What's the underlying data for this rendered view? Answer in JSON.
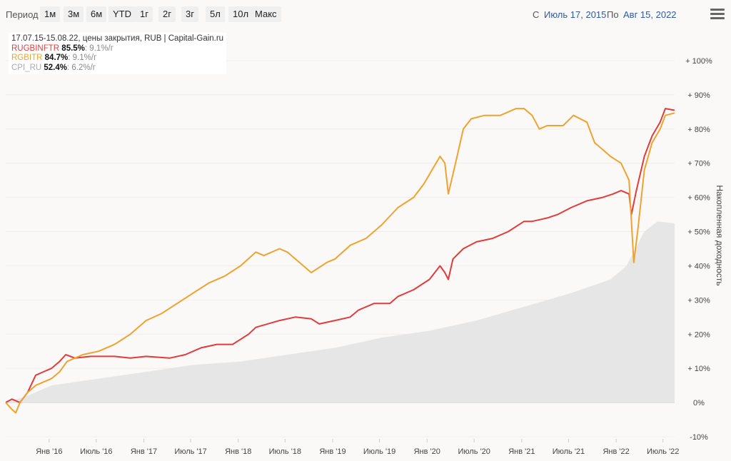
{
  "toolbar": {
    "period_label": "Период",
    "ranges": [
      "1м",
      "3м",
      "6м",
      "YTD",
      "1г",
      "2г",
      "3г",
      "5л",
      "10л",
      "Макс"
    ],
    "from_label": "С",
    "from_date": "Июль 17, 2015",
    "to_label": "По",
    "to_date": "Авг 15, 2022",
    "menu_icon": "hamburger-icon"
  },
  "legend": {
    "header": "17.07.15-15.08.22, цены закрытия, RUB | Capital-Gain.ru",
    "items": [
      {
        "name": "RUGBINFTR",
        "total": "85.5%",
        "rate": ": 9.1%/г",
        "color": "#e03c3c"
      },
      {
        "name": "RGBITR",
        "total": "84.7%",
        "rate": ": 9.1%/г",
        "color": "#f0a22e"
      },
      {
        "name": "CPI_RU",
        "total": "52.4%",
        "rate": ": 6.2%/г",
        "color": "#aaaaaa"
      }
    ]
  },
  "chart_data": {
    "type": "line",
    "title": "",
    "xlabel": "",
    "ylabel": "Накопленная доходность",
    "ylim": [
      -10,
      100
    ],
    "x_ticks": [
      "Янв '16",
      "Июль '16",
      "Янв '17",
      "Июль '17",
      "Янв '18",
      "Июль '18",
      "Янв '19",
      "Июль '19",
      "Янв '20",
      "Июль '20",
      "Янв '21",
      "Июль '21",
      "Янв '22",
      "Июль '22"
    ],
    "y_ticks": [
      "-10%",
      "0%",
      "+ 10%",
      "+ 20%",
      "+ 30%",
      "+ 40%",
      "+ 50%",
      "+ 60%",
      "+ 70%",
      "+ 80%",
      "+ 90%",
      "+ 100%"
    ],
    "series": [
      {
        "name": "RUGBINFTR",
        "color": "#e03c3c",
        "points": [
          [
            "2015-07-17",
            0
          ],
          [
            "2015-08-10",
            1
          ],
          [
            "2015-09-10",
            0
          ],
          [
            "2015-10-10",
            3
          ],
          [
            "2015-11-10",
            8
          ],
          [
            "2015-12-10",
            9
          ],
          [
            "2016-01-10",
            10
          ],
          [
            "2016-02-10",
            12
          ],
          [
            "2016-03-05",
            14
          ],
          [
            "2016-04-10",
            13
          ],
          [
            "2016-06-10",
            13.5
          ],
          [
            "2016-09-10",
            13.5
          ],
          [
            "2016-11-10",
            13
          ],
          [
            "2017-01-10",
            13.5
          ],
          [
            "2017-04-10",
            13
          ],
          [
            "2017-06-10",
            14
          ],
          [
            "2017-08-10",
            16
          ],
          [
            "2017-10-10",
            17
          ],
          [
            "2017-12-10",
            17
          ],
          [
            "2018-02-10",
            20
          ],
          [
            "2018-03-10",
            22
          ],
          [
            "2018-06-10",
            24
          ],
          [
            "2018-08-10",
            25
          ],
          [
            "2018-10-10",
            24.5
          ],
          [
            "2018-11-10",
            23
          ],
          [
            "2019-01-10",
            24
          ],
          [
            "2019-03-10",
            25
          ],
          [
            "2019-04-10",
            27
          ],
          [
            "2019-06-10",
            29
          ],
          [
            "2019-08-10",
            29
          ],
          [
            "2019-09-10",
            31
          ],
          [
            "2019-11-10",
            33
          ],
          [
            "2020-01-10",
            36
          ],
          [
            "2020-02-20",
            40
          ],
          [
            "2020-03-10",
            38
          ],
          [
            "2020-03-23",
            36
          ],
          [
            "2020-04-10",
            42
          ],
          [
            "2020-05-20",
            45
          ],
          [
            "2020-07-10",
            47
          ],
          [
            "2020-09-10",
            48
          ],
          [
            "2020-11-10",
            50
          ],
          [
            "2021-01-10",
            53
          ],
          [
            "2021-02-10",
            53
          ],
          [
            "2021-04-10",
            54
          ],
          [
            "2021-05-20",
            55
          ],
          [
            "2021-07-10",
            57
          ],
          [
            "2021-09-10",
            59
          ],
          [
            "2021-11-10",
            60
          ],
          [
            "2021-12-20",
            61
          ],
          [
            "2022-01-20",
            62
          ],
          [
            "2022-02-20",
            61
          ],
          [
            "2022-03-01",
            55
          ],
          [
            "2022-03-20",
            62
          ],
          [
            "2022-04-20",
            72
          ],
          [
            "2022-05-20",
            78
          ],
          [
            "2022-06-20",
            82
          ],
          [
            "2022-07-10",
            86
          ],
          [
            "2022-08-15",
            85.5
          ]
        ]
      },
      {
        "name": "RGBITR",
        "color": "#f0a22e",
        "points": [
          [
            "2015-07-17",
            0
          ],
          [
            "2015-08-10",
            -2
          ],
          [
            "2015-08-25",
            -3
          ],
          [
            "2015-09-10",
            0
          ],
          [
            "2015-10-10",
            3
          ],
          [
            "2015-11-10",
            5
          ],
          [
            "2015-12-10",
            6
          ],
          [
            "2016-01-10",
            7
          ],
          [
            "2016-02-10",
            9
          ],
          [
            "2016-03-10",
            12
          ],
          [
            "2016-05-10",
            14
          ],
          [
            "2016-07-10",
            15
          ],
          [
            "2016-09-10",
            17
          ],
          [
            "2016-11-10",
            20
          ],
          [
            "2017-01-10",
            24
          ],
          [
            "2017-03-10",
            26
          ],
          [
            "2017-05-10",
            29
          ],
          [
            "2017-07-10",
            32
          ],
          [
            "2017-09-10",
            35
          ],
          [
            "2017-11-10",
            37
          ],
          [
            "2018-01-10",
            40
          ],
          [
            "2018-03-10",
            44
          ],
          [
            "2018-04-10",
            43
          ],
          [
            "2018-05-10",
            44
          ],
          [
            "2018-06-10",
            45
          ],
          [
            "2018-07-10",
            44
          ],
          [
            "2018-09-10",
            40
          ],
          [
            "2018-10-10",
            38
          ],
          [
            "2018-12-10",
            41
          ],
          [
            "2019-01-10",
            42
          ],
          [
            "2019-03-10",
            46
          ],
          [
            "2019-05-10",
            48
          ],
          [
            "2019-07-10",
            52
          ],
          [
            "2019-09-10",
            57
          ],
          [
            "2019-11-10",
            60
          ],
          [
            "2019-12-20",
            64
          ],
          [
            "2020-01-20",
            68
          ],
          [
            "2020-02-20",
            72
          ],
          [
            "2020-03-10",
            70
          ],
          [
            "2020-03-23",
            61
          ],
          [
            "2020-04-20",
            70
          ],
          [
            "2020-05-20",
            80
          ],
          [
            "2020-06-20",
            83
          ],
          [
            "2020-08-10",
            84
          ],
          [
            "2020-10-10",
            84
          ],
          [
            "2020-12-10",
            86
          ],
          [
            "2021-01-10",
            86
          ],
          [
            "2021-02-10",
            84
          ],
          [
            "2021-03-10",
            80
          ],
          [
            "2021-04-10",
            81
          ],
          [
            "2021-06-10",
            81
          ],
          [
            "2021-07-20",
            84
          ],
          [
            "2021-09-10",
            82
          ],
          [
            "2021-10-10",
            76
          ],
          [
            "2021-11-10",
            74
          ],
          [
            "2021-12-10",
            72
          ],
          [
            "2022-01-20",
            70
          ],
          [
            "2022-02-20",
            65
          ],
          [
            "2022-03-10",
            41
          ],
          [
            "2022-03-25",
            50
          ],
          [
            "2022-04-20",
            68
          ],
          [
            "2022-05-20",
            76
          ],
          [
            "2022-06-20",
            80
          ],
          [
            "2022-07-10",
            84
          ],
          [
            "2022-08-15",
            84.7
          ]
        ]
      },
      {
        "name": "CPI_RU",
        "color": "#aaaaaa",
        "fill": "#e6e6e6",
        "points": [
          [
            "2015-07-17",
            0
          ],
          [
            "2015-10-10",
            2
          ],
          [
            "2016-01-10",
            5
          ],
          [
            "2016-07-10",
            7
          ],
          [
            "2017-01-10",
            9
          ],
          [
            "2017-07-10",
            11
          ],
          [
            "2018-01-10",
            12
          ],
          [
            "2018-07-10",
            14
          ],
          [
            "2019-01-10",
            16
          ],
          [
            "2019-07-10",
            19
          ],
          [
            "2020-01-10",
            21
          ],
          [
            "2020-07-10",
            24
          ],
          [
            "2021-01-10",
            28
          ],
          [
            "2021-07-10",
            32
          ],
          [
            "2021-12-10",
            36
          ],
          [
            "2022-02-10",
            40
          ],
          [
            "2022-04-20",
            50
          ],
          [
            "2022-06-10",
            53
          ],
          [
            "2022-08-15",
            52.4
          ]
        ]
      }
    ]
  }
}
